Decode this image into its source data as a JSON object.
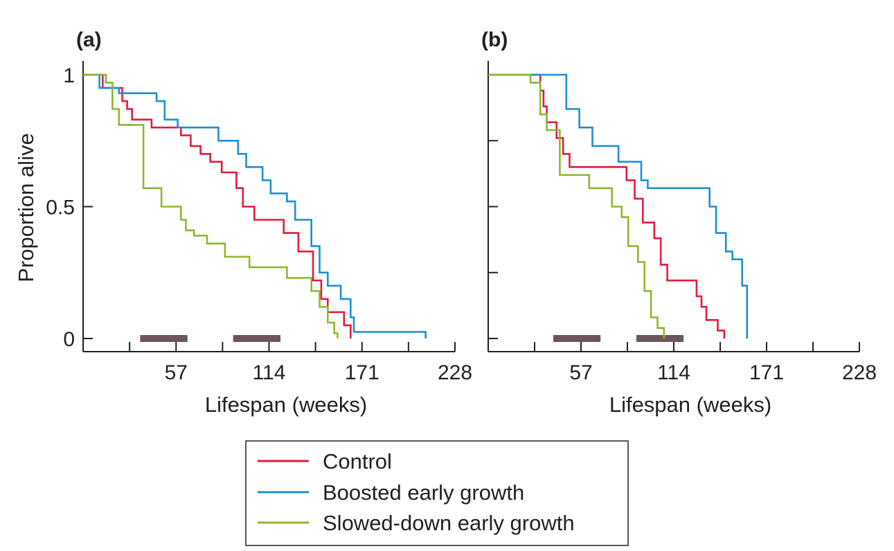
{
  "colors": {
    "control": "#e31b3c",
    "boosted": "#1b8fd6",
    "slowed": "#8db82b",
    "period_bar": "#6b5659",
    "axis": "#231f20"
  },
  "legend": {
    "items": [
      {
        "key": "control",
        "label": "Control"
      },
      {
        "key": "boosted",
        "label": "Boosted early growth"
      },
      {
        "key": "slowed",
        "label": "Slowed-down early growth"
      }
    ]
  },
  "chart_data": [
    {
      "panel": "(a)",
      "type": "line",
      "step": true,
      "xlabel": "Lifespan (weeks)",
      "ylabel": "Proportion alive",
      "xlim": [
        0,
        228
      ],
      "ylim": [
        0,
        1
      ],
      "xticks": [
        57,
        114,
        171,
        228
      ],
      "yticks": [
        0,
        0.5,
        1
      ],
      "ytick_labels": [
        "0",
        "0.5",
        "1"
      ],
      "period_bars": [
        [
          35,
          64
        ],
        [
          92,
          121
        ]
      ],
      "series": [
        {
          "key": "control",
          "name": "Control",
          "points": [
            [
              0,
              1
            ],
            [
              12,
              1
            ],
            [
              12,
              0.95
            ],
            [
              24,
              0.95
            ],
            [
              24,
              0.9
            ],
            [
              27,
              0.9
            ],
            [
              27,
              0.87
            ],
            [
              30,
              0.87
            ],
            [
              30,
              0.83
            ],
            [
              42,
              0.83
            ],
            [
              42,
              0.8
            ],
            [
              60,
              0.8
            ],
            [
              60,
              0.77
            ],
            [
              66,
              0.77
            ],
            [
              66,
              0.73
            ],
            [
              72,
              0.73
            ],
            [
              72,
              0.7
            ],
            [
              78,
              0.7
            ],
            [
              78,
              0.67
            ],
            [
              85,
              0.67
            ],
            [
              85,
              0.63
            ],
            [
              94,
              0.63
            ],
            [
              94,
              0.57
            ],
            [
              98,
              0.57
            ],
            [
              98,
              0.5
            ],
            [
              105,
              0.5
            ],
            [
              105,
              0.45
            ],
            [
              123,
              0.45
            ],
            [
              123,
              0.4
            ],
            [
              132,
              0.4
            ],
            [
              132,
              0.33
            ],
            [
              141,
              0.33
            ],
            [
              141,
              0.22
            ],
            [
              146,
              0.22
            ],
            [
              146,
              0.15
            ],
            [
              150,
              0.15
            ],
            [
              150,
              0.1
            ],
            [
              160,
              0.1
            ],
            [
              160,
              0.05
            ],
            [
              164,
              0.05
            ],
            [
              164,
              0
            ]
          ]
        },
        {
          "key": "boosted",
          "name": "Boosted early growth",
          "points": [
            [
              0,
              1
            ],
            [
              10,
              1
            ],
            [
              10,
              0.95
            ],
            [
              22,
              0.95
            ],
            [
              22,
              0.93
            ],
            [
              45,
              0.93
            ],
            [
              45,
              0.9
            ],
            [
              50,
              0.9
            ],
            [
              50,
              0.83
            ],
            [
              58,
              0.83
            ],
            [
              58,
              0.8
            ],
            [
              83,
              0.8
            ],
            [
              83,
              0.75
            ],
            [
              95,
              0.75
            ],
            [
              95,
              0.7
            ],
            [
              100,
              0.7
            ],
            [
              100,
              0.65
            ],
            [
              110,
              0.65
            ],
            [
              110,
              0.6
            ],
            [
              115,
              0.6
            ],
            [
              115,
              0.55
            ],
            [
              125,
              0.55
            ],
            [
              125,
              0.52
            ],
            [
              130,
              0.52
            ],
            [
              130,
              0.45
            ],
            [
              140,
              0.45
            ],
            [
              140,
              0.35
            ],
            [
              145,
              0.35
            ],
            [
              145,
              0.25
            ],
            [
              150,
              0.25
            ],
            [
              150,
              0.2
            ],
            [
              158,
              0.2
            ],
            [
              158,
              0.15
            ],
            [
              164,
              0.15
            ],
            [
              164,
              0.08
            ],
            [
              166,
              0.08
            ],
            [
              166,
              0.025
            ],
            [
              210,
              0.025
            ],
            [
              210,
              0
            ]
          ]
        },
        {
          "key": "slowed",
          "name": "Slowed-down early growth",
          "points": [
            [
              0,
              1
            ],
            [
              14,
              1
            ],
            [
              14,
              0.97
            ],
            [
              18,
              0.97
            ],
            [
              18,
              0.87
            ],
            [
              22,
              0.87
            ],
            [
              22,
              0.81
            ],
            [
              37,
              0.81
            ],
            [
              37,
              0.57
            ],
            [
              48,
              0.57
            ],
            [
              48,
              0.5
            ],
            [
              60,
              0.5
            ],
            [
              60,
              0.45
            ],
            [
              63,
              0.45
            ],
            [
              63,
              0.41
            ],
            [
              68,
              0.41
            ],
            [
              68,
              0.39
            ],
            [
              76,
              0.39
            ],
            [
              76,
              0.36
            ],
            [
              87,
              0.36
            ],
            [
              87,
              0.31
            ],
            [
              102,
              0.31
            ],
            [
              102,
              0.27
            ],
            [
              125,
              0.27
            ],
            [
              125,
              0.23
            ],
            [
              140,
              0.23
            ],
            [
              140,
              0.18
            ],
            [
              145,
              0.18
            ],
            [
              145,
              0.12
            ],
            [
              150,
              0.12
            ],
            [
              150,
              0.06
            ],
            [
              154,
              0.06
            ],
            [
              154,
              0.02
            ],
            [
              156,
              0.02
            ],
            [
              156,
              0
            ]
          ]
        }
      ]
    },
    {
      "panel": "(b)",
      "type": "line",
      "step": true,
      "xlabel": "Lifespan (weeks)",
      "ylabel": "",
      "xlim": [
        0,
        228
      ],
      "ylim": [
        0,
        1
      ],
      "xticks": [
        57,
        114,
        171,
        228
      ],
      "yticks": [
        0,
        0.25,
        0.5,
        0.75,
        1
      ],
      "ytick_labels": [],
      "period_bars": [
        [
          40,
          69
        ],
        [
          91,
          120
        ]
      ],
      "series": [
        {
          "key": "control",
          "name": "Control",
          "points": [
            [
              0,
              1
            ],
            [
              32,
              1
            ],
            [
              32,
              0.94
            ],
            [
              34,
              0.94
            ],
            [
              34,
              0.88
            ],
            [
              36,
              0.88
            ],
            [
              36,
              0.82
            ],
            [
              42,
              0.82
            ],
            [
              42,
              0.76
            ],
            [
              46,
              0.76
            ],
            [
              46,
              0.7
            ],
            [
              50,
              0.7
            ],
            [
              50,
              0.65
            ],
            [
              85,
              0.65
            ],
            [
              85,
              0.6
            ],
            [
              90,
              0.6
            ],
            [
              90,
              0.53
            ],
            [
              95,
              0.53
            ],
            [
              95,
              0.44
            ],
            [
              102,
              0.44
            ],
            [
              102,
              0.38
            ],
            [
              106,
              0.38
            ],
            [
              106,
              0.28
            ],
            [
              110,
              0.28
            ],
            [
              110,
              0.22
            ],
            [
              128,
              0.22
            ],
            [
              128,
              0.16
            ],
            [
              131,
              0.16
            ],
            [
              131,
              0.12
            ],
            [
              134,
              0.12
            ],
            [
              134,
              0.07
            ],
            [
              141,
              0.07
            ],
            [
              141,
              0.03
            ],
            [
              145,
              0.03
            ],
            [
              145,
              0
            ]
          ]
        },
        {
          "key": "boosted",
          "name": "Boosted early growth",
          "points": [
            [
              0,
              1
            ],
            [
              48,
              1
            ],
            [
              48,
              0.87
            ],
            [
              56,
              0.87
            ],
            [
              56,
              0.8
            ],
            [
              64,
              0.8
            ],
            [
              64,
              0.73
            ],
            [
              80,
              0.73
            ],
            [
              80,
              0.67
            ],
            [
              94,
              0.67
            ],
            [
              94,
              0.6
            ],
            [
              98,
              0.6
            ],
            [
              98,
              0.57
            ],
            [
              136,
              0.57
            ],
            [
              136,
              0.5
            ],
            [
              140,
              0.5
            ],
            [
              140,
              0.4
            ],
            [
              146,
              0.4
            ],
            [
              146,
              0.33
            ],
            [
              150,
              0.33
            ],
            [
              150,
              0.3
            ],
            [
              156,
              0.3
            ],
            [
              156,
              0.2
            ],
            [
              159,
              0.2
            ],
            [
              159,
              0
            ]
          ]
        },
        {
          "key": "slowed",
          "name": "Slowed-down early growth",
          "points": [
            [
              0,
              1
            ],
            [
              26,
              1
            ],
            [
              26,
              0.97
            ],
            [
              32,
              0.97
            ],
            [
              32,
              0.85
            ],
            [
              36,
              0.85
            ],
            [
              36,
              0.79
            ],
            [
              44,
              0.79
            ],
            [
              44,
              0.62
            ],
            [
              62,
              0.62
            ],
            [
              62,
              0.57
            ],
            [
              76,
              0.57
            ],
            [
              76,
              0.5
            ],
            [
              82,
              0.5
            ],
            [
              82,
              0.46
            ],
            [
              86,
              0.46
            ],
            [
              86,
              0.35
            ],
            [
              92,
              0.35
            ],
            [
              92,
              0.29
            ],
            [
              96,
              0.29
            ],
            [
              96,
              0.18
            ],
            [
              100,
              0.18
            ],
            [
              100,
              0.08
            ],
            [
              104,
              0.08
            ],
            [
              104,
              0.04
            ],
            [
              108,
              0.04
            ],
            [
              108,
              0
            ]
          ]
        }
      ]
    }
  ]
}
